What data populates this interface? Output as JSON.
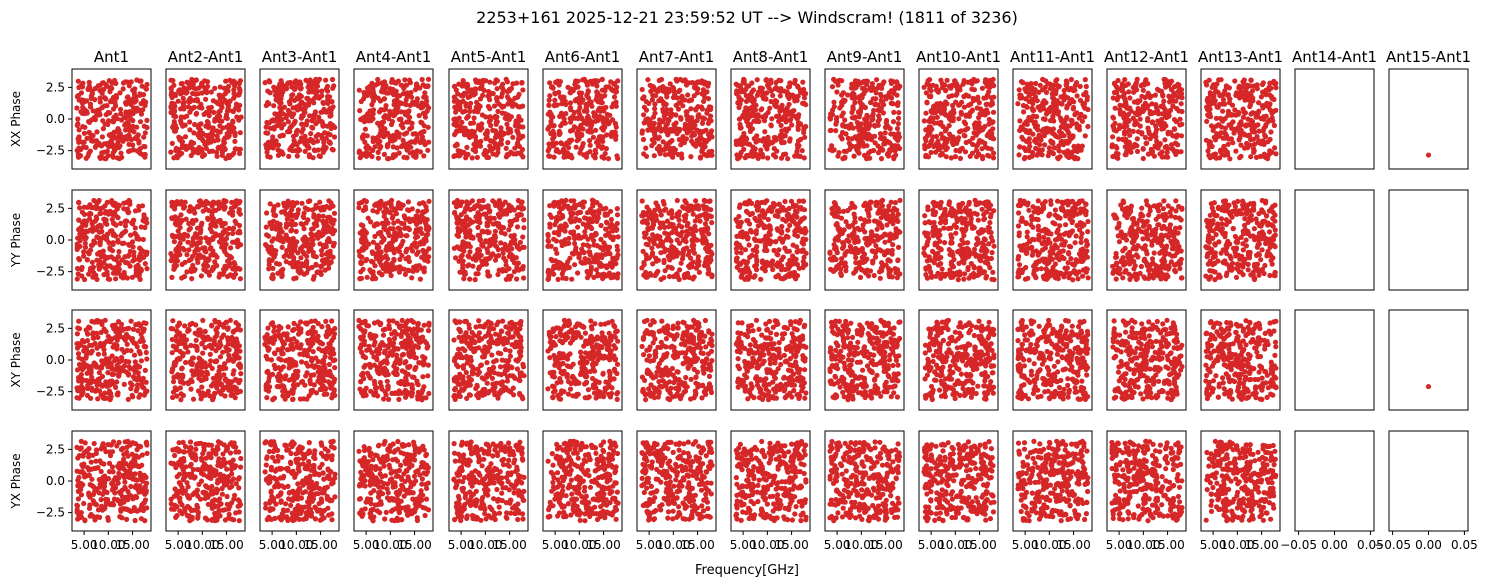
{
  "figure": {
    "title": "2253+161 2025-12-21 23:59:52 UT --> Windscram! (1811 of 3236)",
    "xlabel": "Frequency[GHz]"
  },
  "chart_data": {
    "type": "scatter",
    "title": "2253+161 2025-12-21 23:59:52 UT --> Windscram! (1811 of 3236)",
    "xlabel": "Frequency[GHz]",
    "columns": [
      "Ant1",
      "Ant2-Ant1",
      "Ant3-Ant1",
      "Ant4-Ant1",
      "Ant5-Ant1",
      "Ant6-Ant1",
      "Ant7-Ant1",
      "Ant8-Ant1",
      "Ant9-Ant1",
      "Ant10-Ant1",
      "Ant11-Ant1",
      "Ant12-Ant1",
      "Ant13-Ant1",
      "Ant14-Ant1",
      "Ant15-Ant1"
    ],
    "rows": [
      "XX Phase",
      "YY Phase",
      "XY Phase",
      "YX Phase"
    ],
    "ylim": [
      -3.95,
      3.95
    ],
    "yticks": [
      -2.5,
      0.0,
      2.5
    ],
    "ytick_labels": [
      "−2.5",
      "0.0",
      "2.5"
    ],
    "xlim_main": [
      2.5,
      18.8
    ],
    "xticks_main": [
      5.0,
      10.0,
      15.0
    ],
    "xtick_labels_main": [
      "5.00",
      "10.00",
      "15.00"
    ],
    "xlim_empty": [
      -0.055,
      0.055
    ],
    "xticks_empty": [
      -0.05,
      0.0,
      0.05
    ],
    "xtick_labels_empty": [
      "−0.05",
      "0.00",
      "0.05"
    ],
    "marker_color": "#d62728",
    "freq_range": [
      3.5,
      18.0
    ],
    "points_per_panel": 300,
    "filled_columns": 13,
    "grid": false,
    "note_data": "Phases in columns 1-13 are scattered uniformly between -pi and pi across the frequency band.",
    "single_points": [
      {
        "row": 0,
        "column": 14,
        "x": 0.0,
        "y": -2.85
      },
      {
        "row": 2,
        "column": 14,
        "x": 0.0,
        "y": -2.1
      }
    ]
  }
}
